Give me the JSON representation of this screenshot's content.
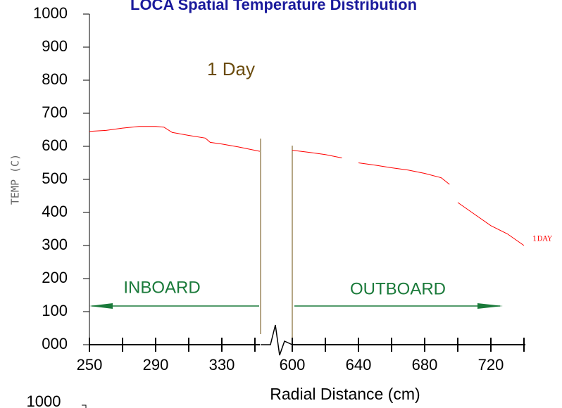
{
  "chart_data": {
    "type": "line",
    "title": "LOCA Spatial Temperature Distribution",
    "y_label": "TEMP (C)",
    "x_label": "Radial Distance (cm)",
    "ylim": [
      0,
      1000
    ],
    "yticks": [
      {
        "value": 0,
        "label": "000"
      },
      100,
      200,
      300,
      400,
      500,
      600,
      700,
      800,
      900,
      1000
    ],
    "x_segments": [
      {
        "xlim": [
          250,
          353
        ],
        "xticks": [
          250,
          290,
          330
        ],
        "minor_xticks": [
          270,
          310,
          350
        ]
      },
      {
        "xlim": [
          600,
          740
        ],
        "xticks": [
          600,
          640,
          680,
          720
        ],
        "minor_xticks": [
          620,
          660,
          700,
          740
        ]
      }
    ],
    "series": [
      {
        "name": "1DAY",
        "color": "#ff0000",
        "x": [
          250,
          260,
          270,
          280,
          290,
          295,
          300,
          310,
          320,
          323,
          330,
          340,
          353,
          400,
          600,
          610,
          620,
          630,
          637,
          640,
          650,
          660,
          670,
          680,
          690,
          695,
          697,
          700,
          710,
          720,
          730,
          740
        ],
        "values": [
          645,
          648,
          655,
          660,
          660,
          658,
          642,
          633,
          625,
          612,
          607,
          598,
          585,
          null,
          588,
          582,
          575,
          565,
          null,
          550,
          543,
          535,
          528,
          518,
          505,
          485,
          null,
          430,
          395,
          360,
          335,
          300
        ]
      }
    ],
    "annotation": "1 Day",
    "inboard_label": "INBOARD",
    "outboard_label": "OUTBOARD",
    "next_chart_ytick": "1000"
  }
}
